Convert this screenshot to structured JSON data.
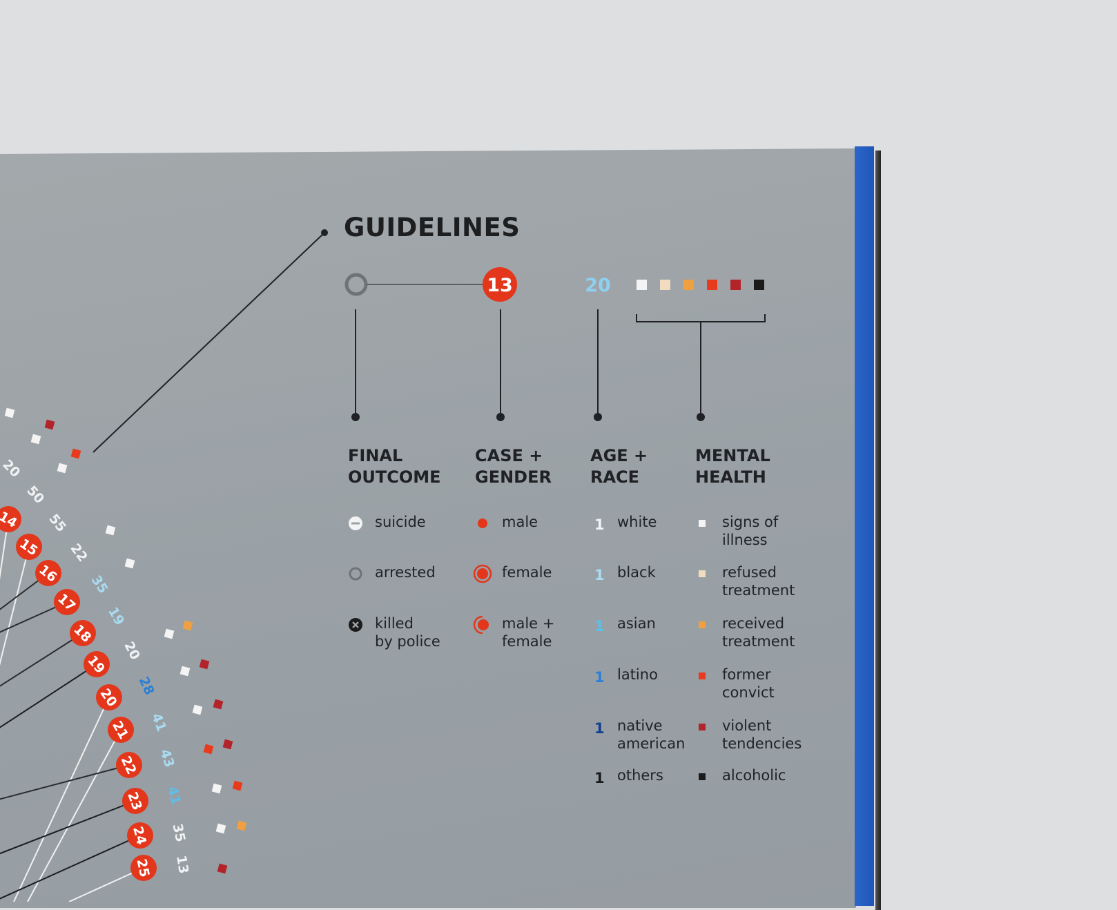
{
  "title": "GUIDELINES",
  "sample": {
    "case_number": "13",
    "age": "20",
    "age_color": "#8fd0f0",
    "mental_colors": [
      "#f4f4f4",
      "#f1dcc0",
      "#f0a040",
      "#e83a1c",
      "#b3232a",
      "#1b1b1b"
    ]
  },
  "columns": [
    {
      "heading": [
        "FINAL",
        "OUTCOME"
      ],
      "items": [
        {
          "icon": "suicide-circle-icon",
          "label": [
            "suicide"
          ]
        },
        {
          "icon": "arrested-ring-icon",
          "label": [
            "arrested"
          ]
        },
        {
          "icon": "killed-x-circle-icon",
          "label": [
            "killed",
            "by police"
          ]
        }
      ]
    },
    {
      "heading": [
        "CASE +",
        "GENDER"
      ],
      "items": [
        {
          "icon": "male-dot-icon",
          "label": [
            "male"
          ]
        },
        {
          "icon": "female-ring-dot-icon",
          "label": [
            "female"
          ]
        },
        {
          "icon": "male-female-dot-icon",
          "label": [
            "male +",
            "female"
          ]
        }
      ]
    },
    {
      "heading": [
        "AGE +",
        "RACE"
      ],
      "items": [
        {
          "glyph": "1",
          "color": "#eef3f5",
          "label": [
            "white"
          ]
        },
        {
          "glyph": "1",
          "color": "#a9dcf2",
          "label": [
            "black"
          ]
        },
        {
          "glyph": "1",
          "color": "#5bbfe9",
          "label": [
            "asian"
          ]
        },
        {
          "glyph": "1",
          "color": "#2a7fd6",
          "label": [
            "latino"
          ]
        },
        {
          "glyph": "1",
          "color": "#133f8f",
          "label": [
            "native",
            "american"
          ]
        },
        {
          "glyph": "1",
          "color": "#1b1b1b",
          "label": [
            "others"
          ]
        }
      ]
    },
    {
      "heading": [
        "MENTAL",
        "HEALTH"
      ],
      "items": [
        {
          "color": "#f4f4f4",
          "label": [
            "signs of",
            "illness"
          ]
        },
        {
          "color": "#f1dcc0",
          "label": [
            "refused",
            "treatment"
          ]
        },
        {
          "color": "#f0a040",
          "label": [
            "received",
            "treatment"
          ]
        },
        {
          "color": "#e83a1c",
          "label": [
            "former",
            "convict"
          ]
        },
        {
          "color": "#b3232a",
          "label": [
            "violent",
            "tendencies"
          ]
        },
        {
          "color": "#1b1b1b",
          "label": [
            "alcoholic"
          ]
        }
      ]
    }
  ],
  "arc_cases": [
    "14",
    "15",
    "16",
    "17",
    "18",
    "19",
    "20",
    "21",
    "22",
    "23",
    "24",
    "25"
  ],
  "arc_ages": [
    {
      "age": "20",
      "color": "#f0f2f3"
    },
    {
      "age": "50",
      "color": "#f0f2f3"
    },
    {
      "age": "55",
      "color": "#f0f2f3"
    },
    {
      "age": "22",
      "color": "#f0f2f3"
    },
    {
      "age": "35",
      "color": "#a9dcf2"
    },
    {
      "age": "19",
      "color": "#a9dcf2"
    },
    {
      "age": "20",
      "color": "#f0f2f3"
    },
    {
      "age": "28",
      "color": "#2a7fd6"
    },
    {
      "age": "41",
      "color": "#a9dcf2"
    },
    {
      "age": "43",
      "color": "#a9dcf2"
    },
    {
      "age": "41",
      "color": "#5bbfe9"
    },
    {
      "age": "35",
      "color": "#f0f2f3"
    },
    {
      "age": "13",
      "color": "#f0f2f3"
    }
  ],
  "colors": {
    "red": "#e3361b",
    "ink": "#1f2124"
  }
}
